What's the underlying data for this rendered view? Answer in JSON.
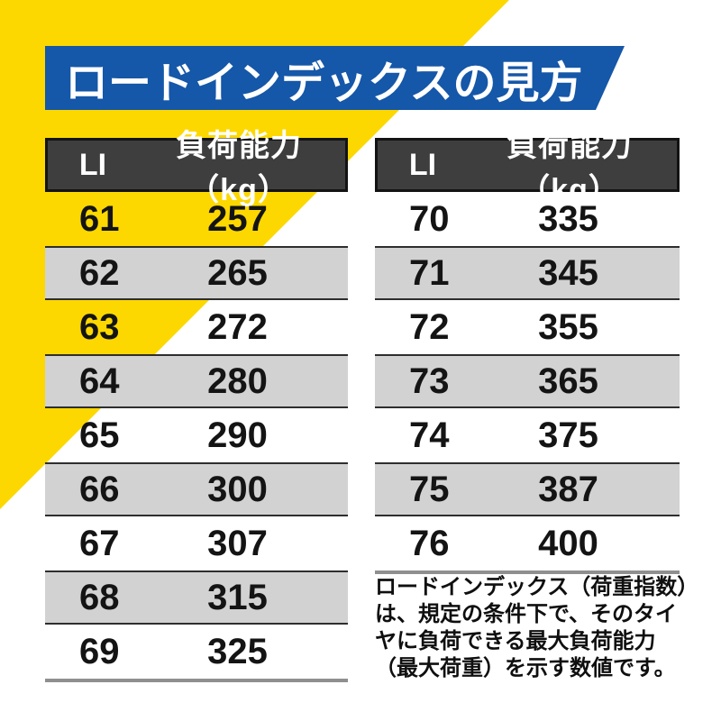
{
  "title": "ロードインデックスの見方",
  "chart_data": [
    {
      "type": "table",
      "title": "ロードインデックスの見方",
      "columns": [
        "LI",
        "負荷能力（kg）"
      ],
      "rows": [
        [
          "61",
          "257"
        ],
        [
          "62",
          "265"
        ],
        [
          "63",
          "272"
        ],
        [
          "64",
          "280"
        ],
        [
          "65",
          "290"
        ],
        [
          "66",
          "300"
        ],
        [
          "67",
          "307"
        ],
        [
          "68",
          "315"
        ],
        [
          "69",
          "325"
        ]
      ]
    },
    {
      "type": "table",
      "title": "ロードインデックスの見方",
      "columns": [
        "LI",
        "負荷能力（kg）"
      ],
      "rows": [
        [
          "70",
          "335"
        ],
        [
          "71",
          "345"
        ],
        [
          "72",
          "355"
        ],
        [
          "73",
          "365"
        ],
        [
          "74",
          "375"
        ],
        [
          "75",
          "387"
        ],
        [
          "76",
          "400"
        ]
      ]
    }
  ],
  "note": "ロードインデックス（荷重指数）\nは、規定の条件下で、そのタイ\nヤに負荷できる最大負荷能力\n（最大荷重）を示す数値です。",
  "colors": {
    "accent_yellow": "#fcd800",
    "accent_blue": "#1557a8",
    "header_bg": "#3e3e3e",
    "row_gray": "#d2d2d2",
    "text": "#141414",
    "header_text": "#ffffff"
  }
}
